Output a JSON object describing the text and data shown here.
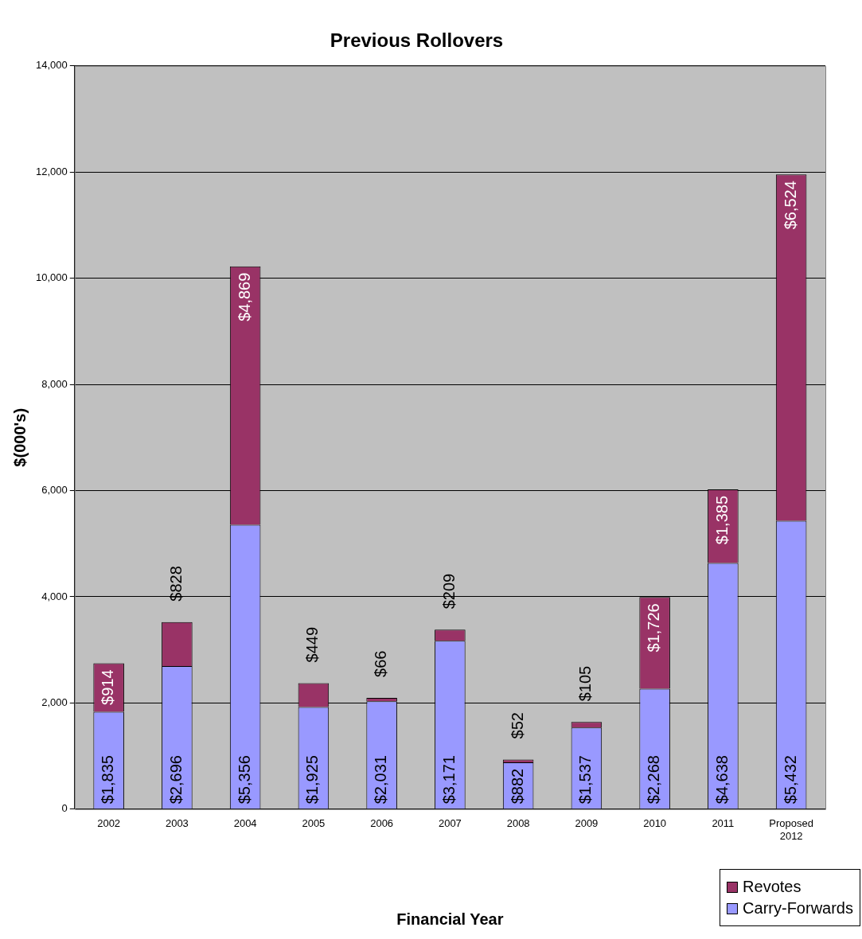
{
  "chart_data": {
    "type": "bar",
    "title": "Previous Rollovers",
    "xlabel": "Financial Year",
    "ylabel": "$(000's)",
    "categories": [
      "2002",
      "2003",
      "2004",
      "2005",
      "2006",
      "2007",
      "2008",
      "2009",
      "2010",
      "2011",
      "Proposed 2012"
    ],
    "stacked": true,
    "series": [
      {
        "name": "Carry-Forwards",
        "color": "#9999ff",
        "values": [
          1835,
          2696,
          5356,
          1925,
          2031,
          3171,
          882,
          1537,
          2268,
          4638,
          5432
        ],
        "value_labels": [
          "$1,835",
          "$2,696",
          "$5,356",
          "$1,925",
          "$2,031",
          "$3,171",
          "$882",
          "$1,537",
          "$2,268",
          "$4,638",
          "$5,432"
        ]
      },
      {
        "name": "Revotes",
        "color": "#993366",
        "values": [
          914,
          828,
          4869,
          449,
          66,
          209,
          52,
          105,
          1726,
          1385,
          6524
        ],
        "value_labels": [
          "$914",
          "$828",
          "$4,869",
          "$449",
          "$66",
          "$209",
          "$52",
          "$105",
          "$1,726",
          "$1,385",
          "$6,524"
        ]
      }
    ],
    "ylim": [
      0,
      14000
    ],
    "yticks": [
      {
        "value": 0,
        "label": "0"
      },
      {
        "value": 2000,
        "label": "2,000"
      },
      {
        "value": 4000,
        "label": "4,000"
      },
      {
        "value": 6000,
        "label": "6,000"
      },
      {
        "value": 8000,
        "label": "8,000"
      },
      {
        "value": 10000,
        "label": "10,000"
      },
      {
        "value": 12000,
        "label": "12,000"
      },
      {
        "value": 14000,
        "label": "14,000"
      }
    ],
    "grid": "y",
    "legend": "bottom right"
  }
}
